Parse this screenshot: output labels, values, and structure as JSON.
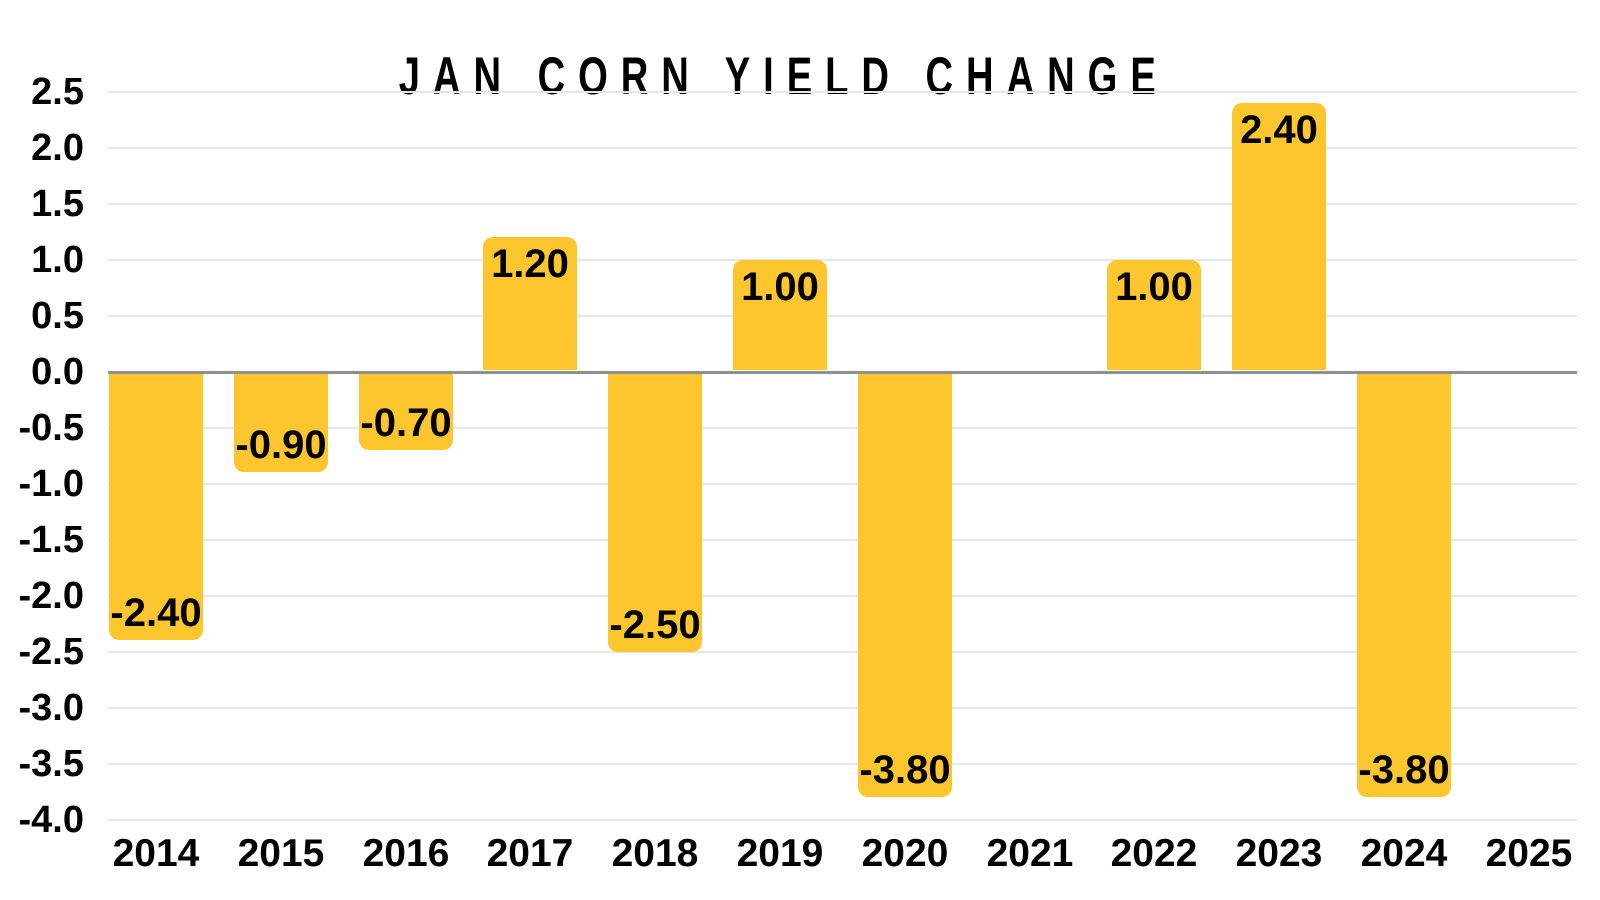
{
  "chart_data": {
    "type": "bar",
    "title": "JAN CORN YIELD CHANGE",
    "categories": [
      "2014",
      "2015",
      "2016",
      "2017",
      "2018",
      "2019",
      "2020",
      "2021",
      "2022",
      "2023",
      "2024",
      "2025"
    ],
    "values": [
      -2.4,
      -0.9,
      -0.7,
      1.2,
      -2.5,
      1.0,
      -3.8,
      null,
      1.0,
      2.4,
      -3.8,
      null
    ],
    "bar_labels": [
      "-2.40",
      "-0.90",
      "-0.70",
      "1.20",
      "-2.50",
      "1.00",
      "-3.80",
      "",
      "1.00",
      "2.40",
      "-3.80",
      ""
    ],
    "xlabel": "",
    "ylabel": "",
    "ylim": [
      -4.0,
      2.5
    ],
    "ytick_step": 0.5,
    "yticks": [
      "2.5",
      "2.0",
      "1.5",
      "1.0",
      "0.5",
      "0.0",
      "-0.5",
      "-1.0",
      "-1.5",
      "-2.0",
      "-2.5",
      "-3.0",
      "-3.5",
      "-4.0"
    ],
    "grid": true,
    "legend": false,
    "bar_style": "rounded-outer-end"
  },
  "colors": {
    "bar": "#fdc62e",
    "text": "#000000",
    "gridline": "#e6e6e6",
    "zero_line": "#8f8f8f",
    "background": "#ffffff"
  }
}
